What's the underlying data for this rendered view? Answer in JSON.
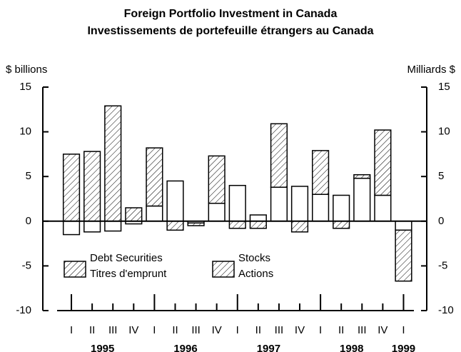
{
  "chart_data": {
    "type": "stacked_bar",
    "title": "Foreign Portfolio Investment in Canada",
    "subtitle": "Investissements de portefeuille étrangers au Canada",
    "y_label": "$ billions",
    "y2_label": "Milliards $",
    "categories": [
      "I",
      "II",
      "III",
      "IV",
      "I",
      "II",
      "III",
      "IV",
      "I",
      "II",
      "III",
      "IV",
      "I",
      "II",
      "III",
      "IV",
      "I"
    ],
    "year_groups": [
      {
        "label": "1995",
        "size": 4
      },
      {
        "label": "1996",
        "size": 4
      },
      {
        "label": "1997",
        "size": 4
      },
      {
        "label": "1998",
        "size": 4
      },
      {
        "label": "1999",
        "size": 1
      }
    ],
    "series": [
      {
        "name": "Debt Securities",
        "name_fr": "Titres d'emprunt",
        "color": "hatch",
        "values": [
          7.5,
          7.8,
          12.9,
          1.5,
          6.5,
          -1.0,
          -0.3,
          5.3,
          -0.8,
          -0.8,
          7.1,
          -1.2,
          4.9,
          -0.8,
          0.4,
          7.3,
          -5.7
        ]
      },
      {
        "name": "Stocks",
        "name_fr": "Actions",
        "color": "#ffffff",
        "values": [
          -1.5,
          -1.2,
          -1.1,
          -0.3,
          1.7,
          4.5,
          -0.2,
          2.0,
          4.0,
          0.7,
          3.8,
          3.9,
          3.0,
          2.9,
          4.8,
          2.9,
          -1.0
        ]
      }
    ],
    "ylim": [
      -10,
      15
    ],
    "yticks": [
      -10,
      -5,
      0,
      5,
      10,
      15
    ],
    "y2lim": [
      -10,
      15
    ],
    "y2ticks": [
      -10,
      -5,
      0,
      5,
      10,
      15
    ]
  }
}
